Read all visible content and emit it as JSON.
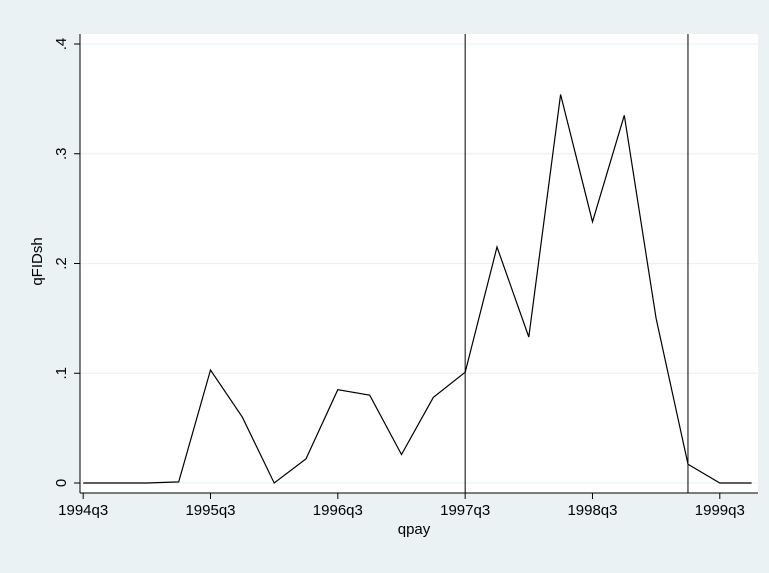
{
  "chart_data": {
    "type": "line",
    "title": "",
    "xlabel": "qpay",
    "ylabel": "qFIDsh",
    "x_ticks": [
      {
        "value": 0,
        "label": "1994q3"
      },
      {
        "value": 4,
        "label": "1995q3"
      },
      {
        "value": 8,
        "label": "1996q3"
      },
      {
        "value": 12,
        "label": "1997q3"
      },
      {
        "value": 16,
        "label": "1998q3"
      },
      {
        "value": 20,
        "label": "1999q3"
      }
    ],
    "y_ticks": [
      {
        "value": 0,
        "label": "0"
      },
      {
        "value": 0.1,
        "label": ".1"
      },
      {
        "value": 0.2,
        "label": ".2"
      },
      {
        "value": 0.3,
        "label": ".3"
      },
      {
        "value": 0.4,
        "label": ".4"
      }
    ],
    "xlim": [
      -0.1,
      21.2
    ],
    "ylim": [
      0,
      0.4
    ],
    "grid": "horizontal",
    "series": [
      {
        "x": [
          0,
          1,
          2,
          3,
          4,
          5,
          6,
          7,
          8,
          9,
          10,
          11,
          12,
          13,
          14,
          15,
          16,
          17,
          18,
          19,
          20,
          21
        ],
        "values": [
          0,
          0,
          0,
          0.001,
          0.103,
          0.06,
          0.0,
          0.022,
          0.085,
          0.08,
          0.026,
          0.078,
          0.101,
          0.215,
          0.133,
          0.354,
          0.238,
          0.335,
          0.15,
          0.017,
          0.0,
          0.0
        ]
      }
    ],
    "vertical_lines_x": [
      12,
      19
    ],
    "colors": {
      "background": "#eaf2f3",
      "plot_background": "#ffffff",
      "line": "#000000",
      "grid": "#eaf2f3"
    }
  }
}
